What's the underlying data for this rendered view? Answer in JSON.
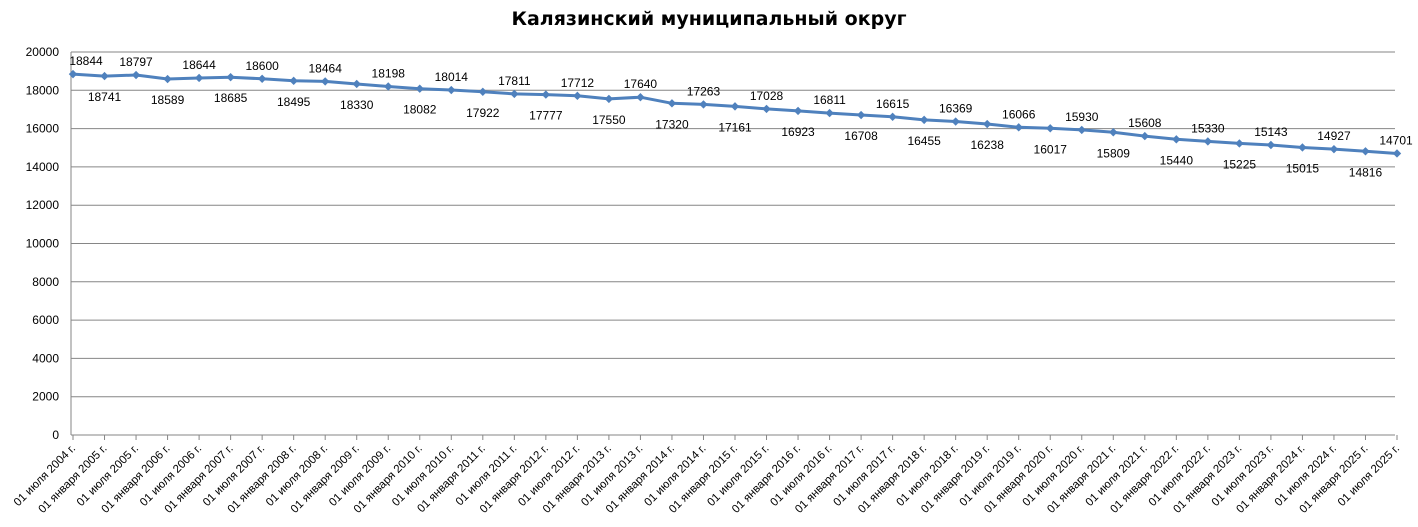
{
  "chart_data": {
    "type": "line",
    "title": "Калязинский муниципальный округ",
    "xlabel": "",
    "ylabel": "",
    "ylim": [
      0,
      20000
    ],
    "yticks": [
      "0",
      "2000",
      "4000",
      "6000",
      "8000",
      "10000",
      "12000",
      "14000",
      "16000",
      "18000",
      "20000"
    ],
    "grid": true,
    "legend": "none",
    "line_color": "#4F81BD",
    "categories": [
      "01 июля 2004 г.",
      "01 января 2005 г.",
      "01 июля 2005 г.",
      "01 января 2006 г.",
      "01 июля 2006 г.",
      "01 января 2007 г.",
      "01 июля 2007 г.",
      "01 января 2008 г.",
      "01 июля 2008 г.",
      "01 января 2009 г.",
      "01 июля 2009 г.",
      "01 января 2010 г.",
      "01 июля 2010 г.",
      "01 января 2011 г.",
      "01 июля 2011 г.",
      "01 января 2012 г.",
      "01 июля 2012 г.",
      "01 января 2013 г.",
      "01 июля 2013 г.",
      "01 января 2014 г.",
      "01 июля 2014 г.",
      "01 января 2015 г.",
      "01 июля 2015 г.",
      "01 января 2016 г.",
      "01 июля 2016 г.",
      "01 января 2017 г.",
      "01 июля 2017 г.",
      "01 января 2018 г.",
      "01 июля 2018 г.",
      "01 января 2019 г.",
      "01 июля 2019 г.",
      "01 января 2020 г.",
      "01 июля 2020 г.",
      "01 января 2021 г.",
      "01 июля 2021 г.",
      "01 января 2022 г.",
      "01 июля 2022 г.",
      "01 января 2023 г.",
      "01 июля 2023 г.",
      "01 января 2024 г.",
      "01 июля 2024 г.",
      "01 января 2025 г.",
      "01 июля 2025 г."
    ],
    "values": [
      18844,
      18741,
      18797,
      18589,
      18644,
      18685,
      18600,
      18495,
      18464,
      18330,
      18198,
      18082,
      18014,
      17922,
      17811,
      17777,
      17712,
      17550,
      17640,
      17320,
      17263,
      17161,
      17028,
      16923,
      16811,
      16708,
      16615,
      16455,
      16369,
      16238,
      16066,
      16017,
      15930,
      15809,
      15608,
      15440,
      15330,
      15225,
      15143,
      15015,
      14927,
      14816,
      14701
    ]
  }
}
